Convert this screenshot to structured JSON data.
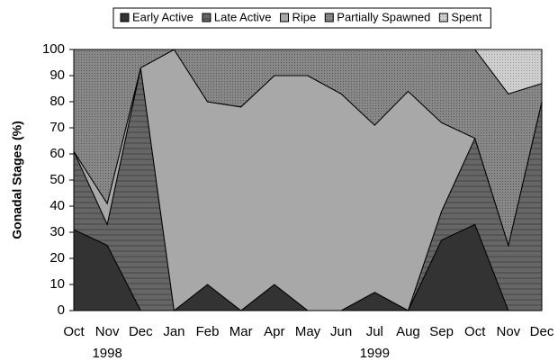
{
  "chart_data": {
    "type": "stacked_area",
    "ylabel": "Gonadal Stages (%)",
    "categories": [
      "Oct",
      "Nov",
      "Dec",
      "Jan",
      "Feb",
      "Mar",
      "Apr",
      "May",
      "Jun",
      "Jul",
      "Aug",
      "Sep",
      "Oct",
      "Nov",
      "Dec"
    ],
    "year_labels": [
      "1998",
      "1999"
    ],
    "series": [
      {
        "name": "Early Active",
        "color": "#333333",
        "values": [
          31,
          25,
          0,
          0,
          10,
          0,
          10,
          0,
          0,
          7,
          0,
          27,
          33,
          0,
          0
        ]
      },
      {
        "name": "Late Active",
        "color": "#666666",
        "values": [
          30,
          8,
          93,
          0,
          0,
          0,
          0,
          0,
          0,
          0,
          0,
          11,
          33,
          25,
          80
        ]
      },
      {
        "name": "Ripe",
        "color": "#a8a8a8",
        "values": [
          0,
          8,
          0,
          100,
          70,
          78,
          80,
          90,
          83,
          64,
          84,
          34,
          0,
          0,
          0
        ]
      },
      {
        "name": "Partially Spawned",
        "color": "#7a7a7a",
        "values": [
          39,
          59,
          7,
          0,
          20,
          22,
          10,
          10,
          17,
          29,
          16,
          28,
          34,
          58,
          7
        ]
      },
      {
        "name": "Spent",
        "color": "#c8c8c8",
        "values": [
          0,
          0,
          0,
          0,
          0,
          0,
          0,
          0,
          0,
          0,
          0,
          0,
          0,
          17,
          13
        ]
      }
    ],
    "ylim": [
      0,
      100
    ],
    "yticks": [
      0,
      10,
      20,
      30,
      40,
      50,
      60,
      70,
      80,
      90,
      100
    ],
    "legend": "top"
  }
}
